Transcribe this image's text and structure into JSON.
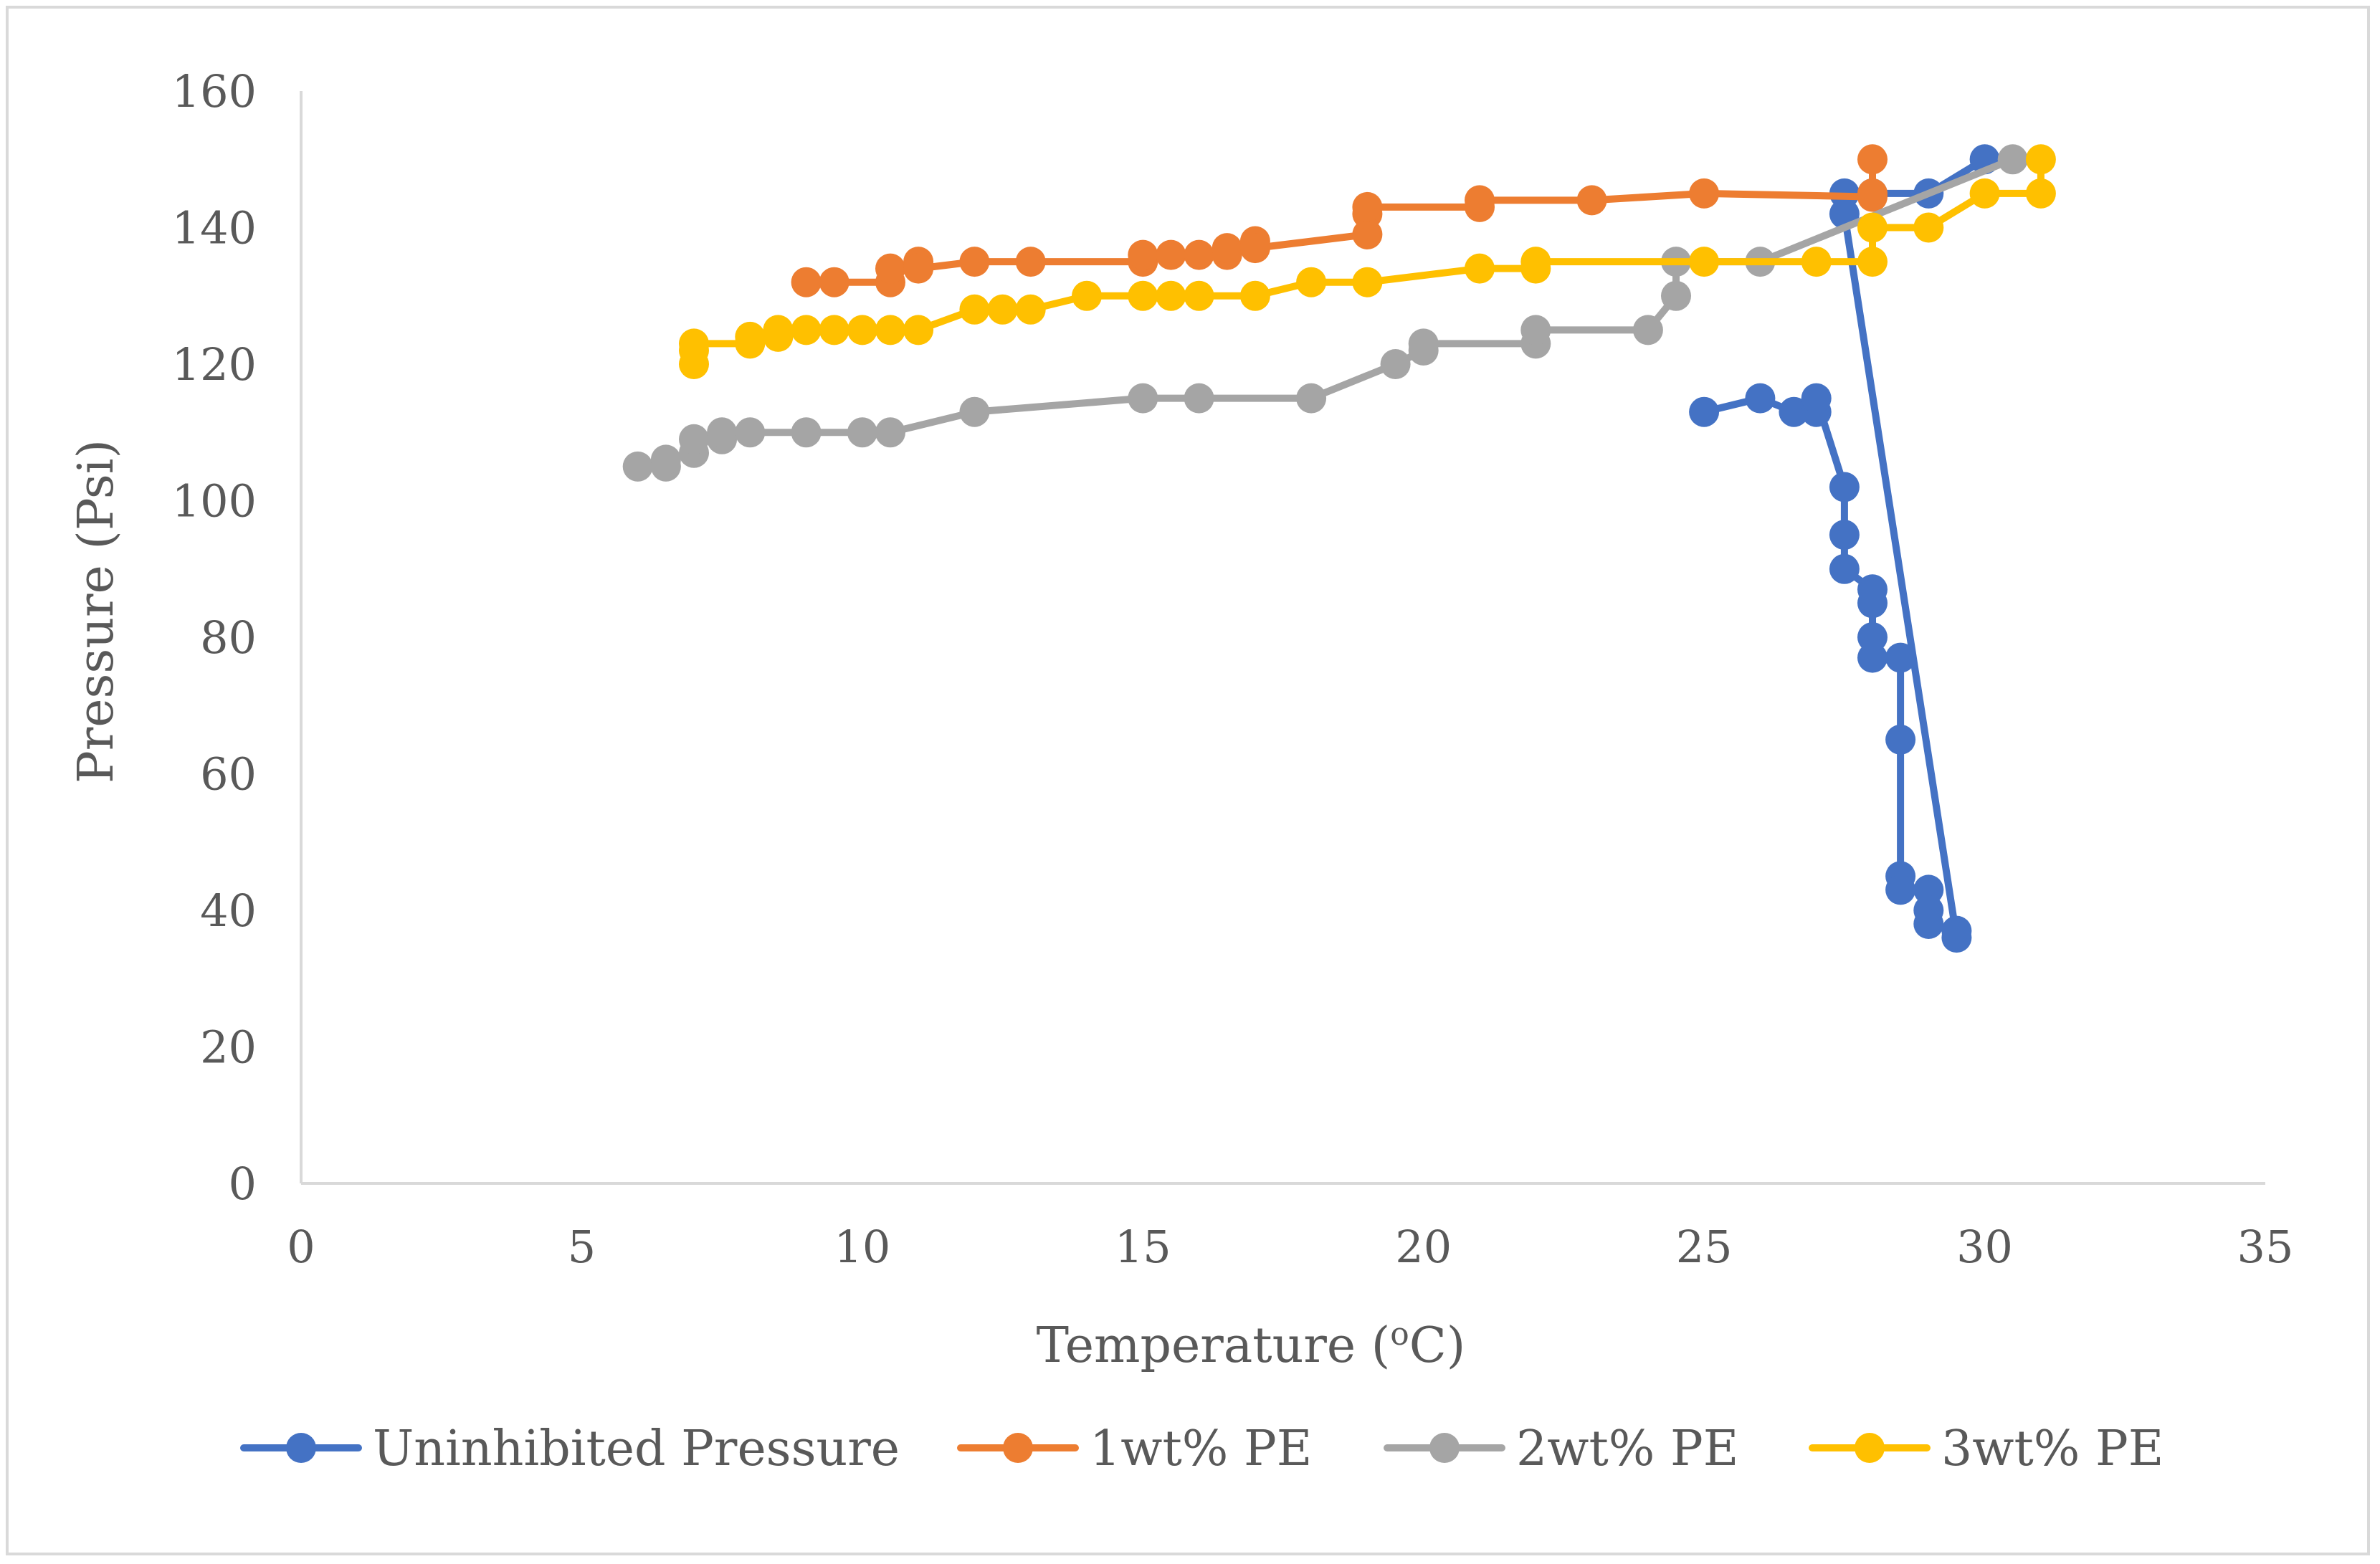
{
  "chart_data": {
    "type": "line",
    "title": "",
    "xlabel": "Temperature (",
    "xlabel_sup": "o",
    "xlabel_unit": "C)",
    "ylabel": "Pressure (Psi)",
    "xlim": [
      0,
      35
    ],
    "ylim": [
      0,
      160
    ],
    "xticks": [
      0,
      5,
      10,
      15,
      20,
      25,
      30,
      35
    ],
    "yticks": [
      0,
      20,
      40,
      60,
      80,
      100,
      120,
      140,
      160
    ],
    "grid": false,
    "legend_position": "bottom",
    "series": [
      {
        "name": "Uninhibited Pressure",
        "color": "#4472c4",
        "points": [
          [
            25,
            113
          ],
          [
            26,
            115
          ],
          [
            26.6,
            113
          ],
          [
            27,
            113
          ],
          [
            27,
            115
          ],
          [
            27.5,
            102
          ],
          [
            27.5,
            95
          ],
          [
            27.5,
            90
          ],
          [
            28,
            87
          ],
          [
            28,
            85
          ],
          [
            28,
            80
          ],
          [
            28,
            77
          ],
          [
            28.5,
            77
          ],
          [
            28.5,
            65
          ],
          [
            28.5,
            45
          ],
          [
            28.5,
            43
          ],
          [
            29,
            43
          ],
          [
            29,
            40
          ],
          [
            29,
            38
          ],
          [
            29.5,
            37
          ],
          [
            29.5,
            36
          ],
          [
            27.5,
            142
          ],
          [
            27.5,
            145
          ],
          [
            28,
            145
          ],
          [
            29,
            145
          ],
          [
            30,
            150
          ]
        ]
      },
      {
        "name": "1wt% PE",
        "color": "#ed7d31",
        "points": [
          [
            9,
            132
          ],
          [
            9.5,
            132
          ],
          [
            10.5,
            132
          ],
          [
            10.5,
            134
          ],
          [
            11,
            135
          ],
          [
            11,
            134
          ],
          [
            12,
            135
          ],
          [
            13,
            135
          ],
          [
            15,
            135
          ],
          [
            15,
            136
          ],
          [
            15.5,
            136
          ],
          [
            16,
            136
          ],
          [
            16.5,
            136
          ],
          [
            16.5,
            137
          ],
          [
            17,
            138
          ],
          [
            17,
            137
          ],
          [
            19,
            139
          ],
          [
            19,
            142
          ],
          [
            19,
            143
          ],
          [
            21,
            143
          ],
          [
            21,
            144
          ],
          [
            23,
            144
          ],
          [
            25,
            145
          ],
          [
            28,
            144.5
          ],
          [
            28,
            145
          ],
          [
            28,
            150
          ]
        ]
      },
      {
        "name": "2wt% PE",
        "color": "#a5a5a5",
        "points": [
          [
            6,
            105
          ],
          [
            6.5,
            105
          ],
          [
            6.5,
            106
          ],
          [
            7,
            107
          ],
          [
            7,
            109
          ],
          [
            7.5,
            109
          ],
          [
            7.5,
            110
          ],
          [
            8,
            110
          ],
          [
            9,
            110
          ],
          [
            10,
            110
          ],
          [
            10.5,
            110
          ],
          [
            12,
            113
          ],
          [
            15,
            115
          ],
          [
            16,
            115
          ],
          [
            18,
            115
          ],
          [
            19.5,
            120
          ],
          [
            20,
            122
          ],
          [
            20,
            123
          ],
          [
            22,
            123
          ],
          [
            22,
            125
          ],
          [
            24,
            125
          ],
          [
            24.5,
            130
          ],
          [
            24.5,
            135
          ],
          [
            26,
            135
          ],
          [
            30.5,
            150
          ]
        ]
      },
      {
        "name": "3wt% PE",
        "color": "#ffc000",
        "points": [
          [
            7,
            120
          ],
          [
            7,
            122
          ],
          [
            7,
            123
          ],
          [
            8,
            123
          ],
          [
            8,
            124
          ],
          [
            8.5,
            124
          ],
          [
            8.5,
            125
          ],
          [
            9,
            125
          ],
          [
            9.5,
            125
          ],
          [
            10,
            125
          ],
          [
            10.5,
            125
          ],
          [
            11,
            125
          ],
          [
            12,
            128
          ],
          [
            12.5,
            128
          ],
          [
            13,
            128
          ],
          [
            14,
            130
          ],
          [
            15,
            130
          ],
          [
            15.5,
            130
          ],
          [
            16,
            130
          ],
          [
            17,
            130
          ],
          [
            18,
            132
          ],
          [
            19,
            132
          ],
          [
            21,
            134
          ],
          [
            22,
            134
          ],
          [
            22,
            135
          ],
          [
            25,
            135
          ],
          [
            27,
            135
          ],
          [
            28,
            135
          ],
          [
            28,
            140
          ],
          [
            29,
            140
          ],
          [
            30,
            145
          ],
          [
            31,
            145
          ],
          [
            31,
            150
          ]
        ]
      }
    ]
  }
}
